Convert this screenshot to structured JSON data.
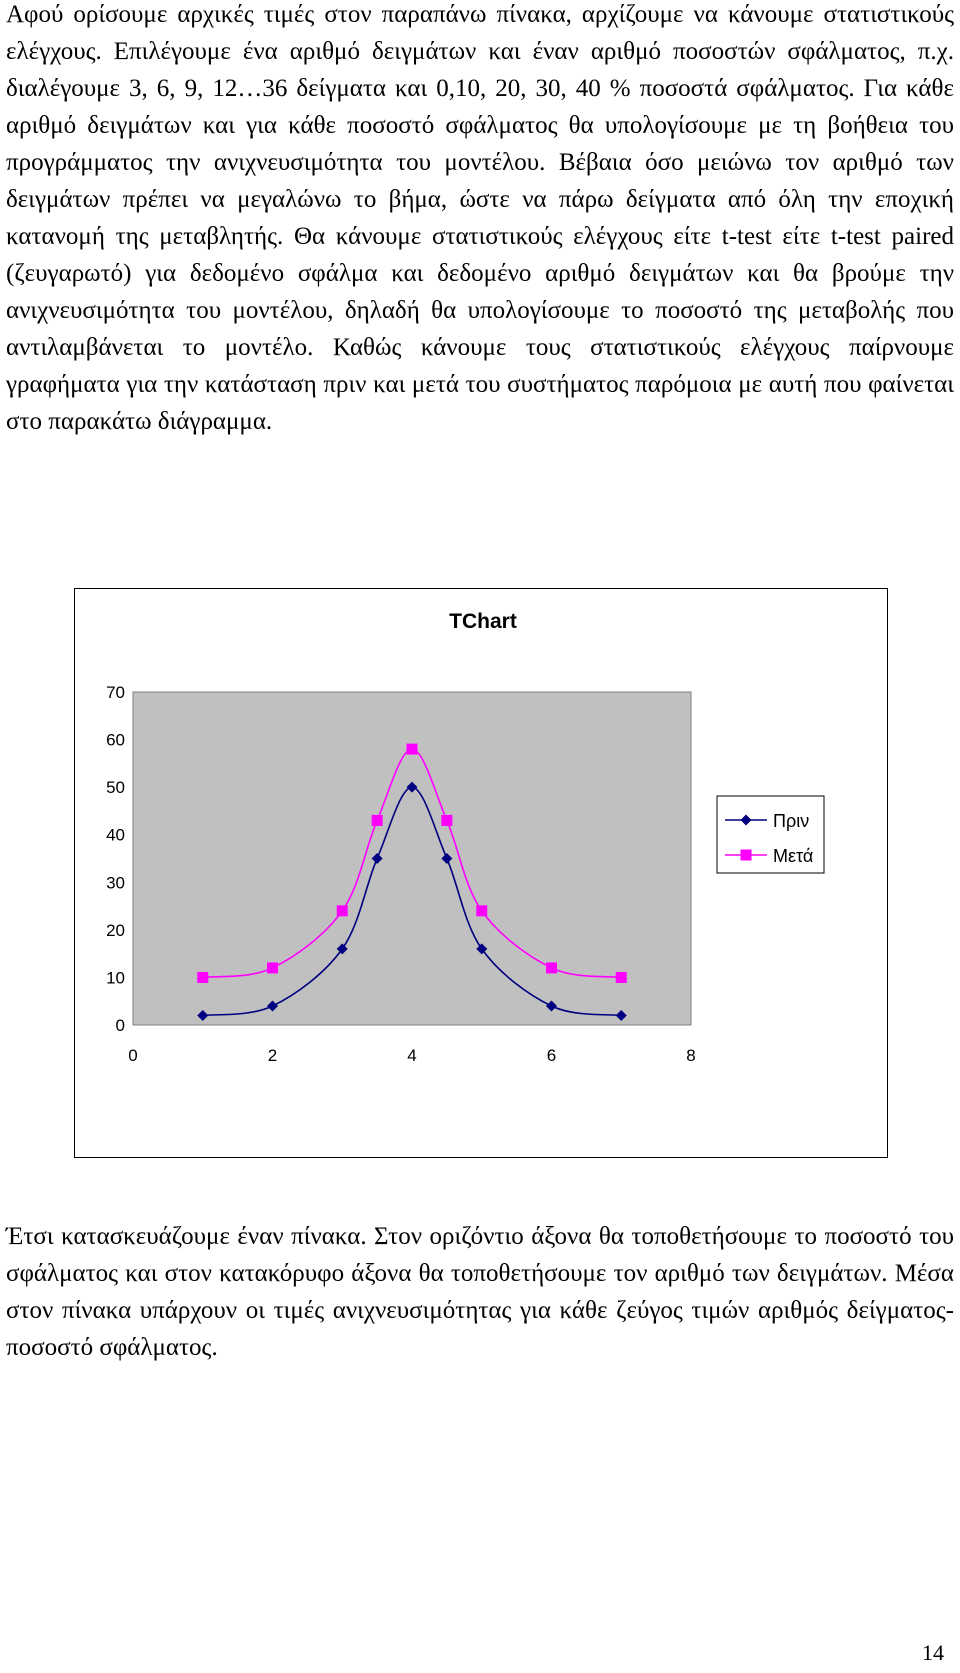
{
  "paragraphs": [
    "Αφού ορίσουμε αρχικές τιμές στον παραπάνω πίνακα, αρχίζουμε να κάνουμε στατιστικούς ελέγχους. Επιλέγουμε ένα αριθμό δειγμάτων και έναν αριθμό ποσοστών σφάλματος, π.χ. διαλέγουμε 3, 6, 9, 12…36 δείγματα και 0,10, 20, 30, 40 % ποσοστά σφάλματος. Για κάθε αριθμό δειγμάτων και για κάθε ποσοστό σφάλματος θα υπολογίσουμε με τη βοήθεια του προγράμματος την ανιχνευσιμότητα του μοντέλου. Βέβαια όσο μειώνω τον αριθμό των δειγμάτων πρέπει να μεγαλώνω το βήμα, ώστε να πάρω δείγματα από όλη την εποχική κατανομή της μεταβλητής. Θα κάνουμε στατιστικούς ελέγχους είτε t-test είτε t-test paired (ζευγαρωτό) για δεδομένο σφάλμα και δεδομένο αριθμό δειγμάτων και θα βρούμε την ανιχνευσιμότητα του μοντέλου, δηλαδή θα υπολογίσουμε το ποσοστό της μεταβολής που αντιλαμβάνεται το μοντέλο. Καθώς κάνουμε τους στατιστικούς ελέγχους παίρνουμε γραφήματα για την κατάσταση πριν και μετά του συστήματος παρόμοια με αυτή που φαίνεται στο παρακάτω διάγραμμα.",
    "Έτσι κατασκευάζουμε έναν πίνακα. Στον οριζόντιο άξονα θα τοποθετήσουμε το ποσοστό του σφάλματος και στον κατακόρυφο άξονα θα τοποθετήσουμε τον αριθμό των δειγμάτων. Μέσα στον πίνακα υπάρχουν οι τιμές ανιχνευσιμότητας για κάθε ζεύγος τιμών αριθμός δείγματος- ποσοστό σφάλματος."
  ],
  "page_number": "14",
  "colors": {
    "plot_bg": "#c0c0c0",
    "series_before": "#000080",
    "series_after": "#ff00ff"
  },
  "chart_data": {
    "type": "scatter",
    "title": "TChart",
    "xlabel": "",
    "ylabel": "",
    "xlim": [
      0,
      8
    ],
    "ylim": [
      0,
      70
    ],
    "xticks": [
      "0",
      "2",
      "4",
      "6",
      "8"
    ],
    "yticks": [
      "0",
      "10",
      "20",
      "30",
      "40",
      "50",
      "60",
      "70"
    ],
    "grid": false,
    "legend": "right",
    "smooth_lines": true,
    "series": [
      {
        "name": "Πριν",
        "marker": "diamond",
        "x": [
          1,
          2,
          3,
          3.5,
          4,
          4.5,
          5,
          6,
          7
        ],
        "y": [
          2,
          4,
          16,
          35,
          50,
          35,
          16,
          4,
          2
        ]
      },
      {
        "name": "Μετά",
        "marker": "square",
        "x": [
          1,
          2,
          3,
          3.5,
          4,
          4.5,
          5,
          6,
          7
        ],
        "y": [
          10,
          12,
          24,
          43,
          58,
          43,
          24,
          12,
          10
        ]
      }
    ]
  }
}
